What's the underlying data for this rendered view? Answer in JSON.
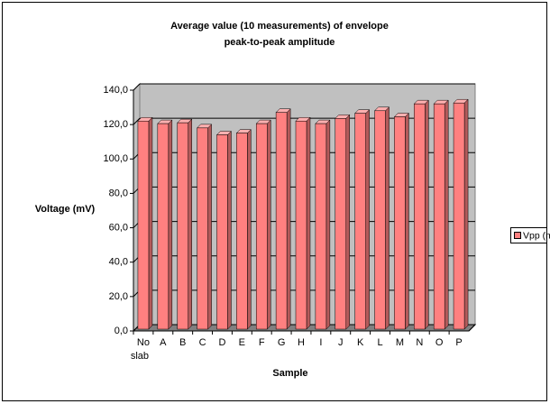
{
  "chart_data": {
    "type": "bar",
    "title": [
      "Average value (10 measurements) of envelope",
      "peak-to-peak amplitude"
    ],
    "x_label": "Sample",
    "y_label": "Voltage (mV)",
    "categories": [
      "No slab",
      "A",
      "B",
      "C",
      "D",
      "E",
      "F",
      "G",
      "H",
      "I",
      "J",
      "K",
      "L",
      "M",
      "N",
      "O",
      "P"
    ],
    "series": [
      {
        "name": "Vpp (mV)",
        "color": "#ff8080",
        "values": [
          121,
          119.5,
          120,
          117,
          113,
          114,
          119.5,
          126,
          121,
          119.5,
          122.5,
          125.5,
          127,
          123.5,
          131,
          131,
          131.5
        ]
      }
    ],
    "ylim": [
      0,
      140
    ],
    "yticks": [
      {
        "value": 0,
        "label": "0,0"
      },
      {
        "value": 20,
        "label": "20,0"
      },
      {
        "value": 40,
        "label": "40,0"
      },
      {
        "value": 60,
        "label": "60,0"
      },
      {
        "value": 80,
        "label": "80,0"
      },
      {
        "value": 100,
        "label": "100,0"
      },
      {
        "value": 120,
        "label": "120,0"
      },
      {
        "value": 140,
        "label": "140,0"
      }
    ],
    "grid": true,
    "legend": "right"
  }
}
